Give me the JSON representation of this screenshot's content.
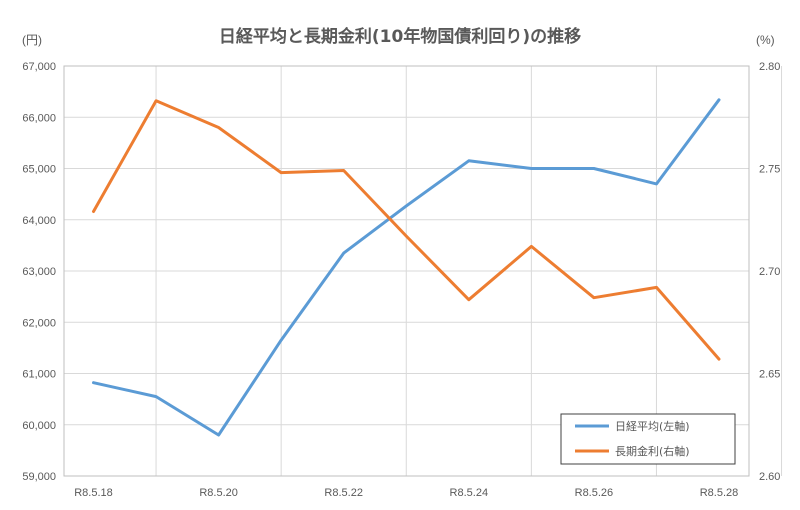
{
  "chart_data": {
    "type": "line",
    "title": "日経平均と長期金利(10年物国債利回り)の推移",
    "y_left_unit": "(円)",
    "y_right_unit": "(%)",
    "y_left_ticks": [
      "59,000",
      "60,000",
      "61,000",
      "62,000",
      "63,000",
      "64,000",
      "65,000",
      "66,000",
      "67,000"
    ],
    "y_right_ticks": [
      "2.60",
      "2.65",
      "2.70",
      "2.75",
      "2.80"
    ],
    "x_tick_labels": [
      "R8.5.18",
      "R8.5.20",
      "R8.5.22",
      "R8.5.24",
      "R8.5.26",
      "R8.5.28"
    ],
    "ylim_left": [
      59000,
      67000
    ],
    "ylim_right": [
      2.6,
      2.8
    ],
    "grid": true,
    "legend_position": "bottom-right",
    "series": [
      {
        "name": "日経平均(左軸)",
        "axis": "left",
        "color": "#5B9BD5",
        "values": [
          60820,
          60550,
          59800,
          61650,
          63350,
          64270,
          65150,
          65000,
          65000,
          64700,
          66340
        ]
      },
      {
        "name": "長期金利(右軸)",
        "axis": "right",
        "color": "#ED7D31",
        "values": [
          2.729,
          2.783,
          2.77,
          2.748,
          2.749,
          2.717,
          2.686,
          2.712,
          2.687,
          2.692,
          2.657
        ]
      }
    ]
  }
}
